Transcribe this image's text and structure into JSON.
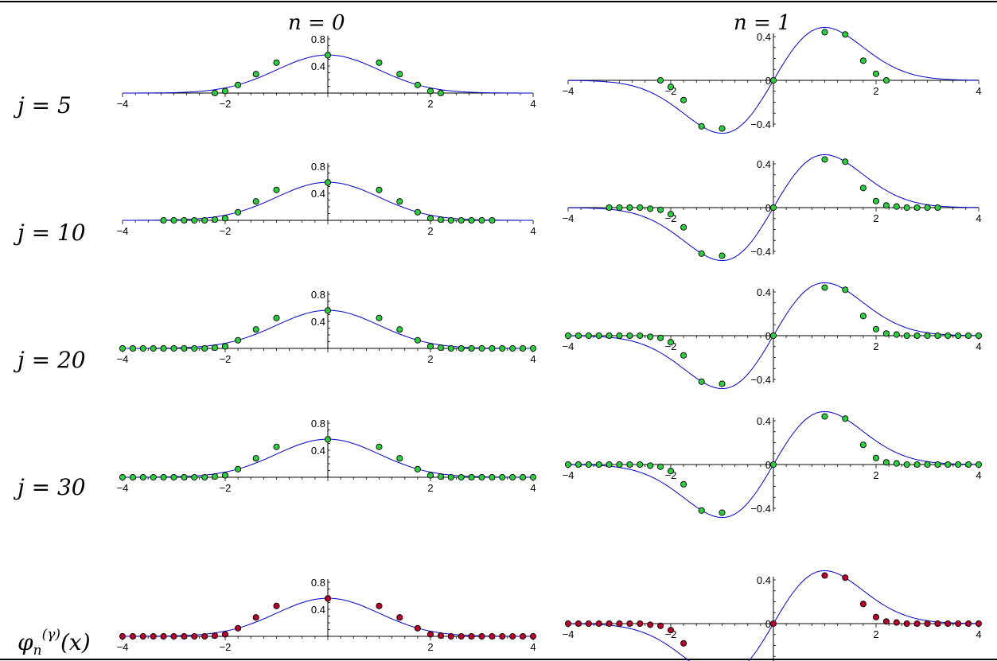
{
  "columns": {
    "left": "n = 0",
    "right": "n = 1"
  },
  "rows": [
    {
      "label": "j = 5"
    },
    {
      "label": "j = 10"
    },
    {
      "label": "j = 20"
    },
    {
      "label": "j = 30"
    },
    {
      "label_base": "φ",
      "label_sub": "n",
      "label_sup": "(γ)",
      "label_tail": "(x)"
    }
  ],
  "colors": {
    "curve": "#0000cc",
    "point_green": "#2ecc40",
    "point_red": "#b8002c",
    "axis": "#000000"
  },
  "chart_data": [
    {
      "type": "line+scatter",
      "row": "j = 5",
      "column": "n = 0",
      "xlim": [
        -4,
        4
      ],
      "ylim": [
        0,
        0.8
      ],
      "x_ticks": [
        -4,
        -2,
        2,
        4
      ],
      "y_ticks": [
        0.4,
        0.8
      ],
      "curve": "phi0",
      "point_color": "green",
      "points_x": [
        -2.2,
        -2.0,
        -1.75,
        -1.4,
        -1.0,
        0.0,
        1.0,
        1.4,
        1.75,
        2.0,
        2.2
      ],
      "points_y": [
        0.0,
        0.03,
        0.12,
        0.28,
        0.45,
        0.56,
        0.45,
        0.28,
        0.12,
        0.03,
        0.0
      ]
    },
    {
      "type": "line+scatter",
      "row": "j = 5",
      "column": "n = 1",
      "xlim": [
        -4,
        4
      ],
      "ylim": [
        -0.4,
        0.4
      ],
      "x_ticks": [
        -4,
        -2,
        2,
        4
      ],
      "y_ticks": [
        -0.4,
        0,
        0.4
      ],
      "curve": "phi1",
      "point_color": "green",
      "points_x": [
        -2.2,
        -2.0,
        -1.75,
        -1.4,
        -1.0,
        0.0,
        1.0,
        1.4,
        1.75,
        2.0,
        2.2
      ],
      "points_y": [
        0.0,
        -0.06,
        -0.18,
        -0.42,
        -0.44,
        0.0,
        0.44,
        0.42,
        0.18,
        0.06,
        0.0
      ]
    },
    {
      "type": "line+scatter",
      "row": "j = 10",
      "column": "n = 0",
      "xlim": [
        -4,
        4
      ],
      "ylim": [
        0,
        0.8
      ],
      "x_ticks": [
        -4,
        -2,
        2,
        4
      ],
      "y_ticks": [
        0.4,
        0.8
      ],
      "curve": "phi0",
      "point_color": "green",
      "points_x": [
        -3.2,
        -3.0,
        -2.8,
        -2.6,
        -2.4,
        -2.2,
        -2.0,
        -1.75,
        -1.4,
        -1.0,
        0.0,
        1.0,
        1.4,
        1.75,
        2.0,
        2.2,
        2.4,
        2.6,
        2.8,
        3.0,
        3.2
      ],
      "points_y": [
        0,
        0,
        0,
        0,
        0,
        0.01,
        0.03,
        0.12,
        0.28,
        0.45,
        0.56,
        0.45,
        0.28,
        0.12,
        0.03,
        0.01,
        0,
        0,
        0,
        0,
        0
      ]
    },
    {
      "type": "line+scatter",
      "row": "j = 10",
      "column": "n = 1",
      "xlim": [
        -4,
        4
      ],
      "ylim": [
        -0.4,
        0.4
      ],
      "x_ticks": [
        -4,
        -2,
        2,
        4
      ],
      "y_ticks": [
        -0.4,
        0,
        0.4
      ],
      "curve": "phi1",
      "point_color": "green",
      "points_x": [
        -3.2,
        -3.0,
        -2.8,
        -2.6,
        -2.4,
        -2.2,
        -2.0,
        -1.75,
        -1.4,
        -1.0,
        0.0,
        1.0,
        1.4,
        1.75,
        2.0,
        2.2,
        2.4,
        2.6,
        2.8,
        3.0,
        3.2
      ],
      "points_y": [
        0,
        0,
        0,
        0,
        -0.01,
        -0.02,
        -0.06,
        -0.18,
        -0.42,
        -0.44,
        0.0,
        0.44,
        0.42,
        0.18,
        0.06,
        0.02,
        0.01,
        0,
        0,
        0,
        0
      ]
    },
    {
      "type": "line+scatter",
      "row": "j = 20",
      "column": "n = 0",
      "xlim": [
        -4,
        4
      ],
      "ylim": [
        0,
        0.8
      ],
      "x_ticks": [
        -4,
        -2,
        2,
        4
      ],
      "y_ticks": [
        0.4,
        0.8
      ],
      "curve": "phi0",
      "point_color": "green",
      "points_x": [
        -4.0,
        -3.8,
        -3.6,
        -3.4,
        -3.2,
        -3.0,
        -2.8,
        -2.6,
        -2.4,
        -2.2,
        -2.0,
        -1.75,
        -1.4,
        -1.0,
        0.0,
        1.0,
        1.4,
        1.75,
        2.0,
        2.2,
        2.4,
        2.6,
        2.8,
        3.0,
        3.2,
        3.4,
        3.6,
        3.8,
        4.0
      ],
      "points_y": [
        0,
        0,
        0,
        0,
        0,
        0,
        0,
        0,
        0,
        0.01,
        0.03,
        0.12,
        0.28,
        0.45,
        0.56,
        0.45,
        0.28,
        0.12,
        0.03,
        0.01,
        0,
        0,
        0,
        0,
        0,
        0,
        0,
        0,
        0
      ]
    },
    {
      "type": "line+scatter",
      "row": "j = 20",
      "column": "n = 1",
      "xlim": [
        -4,
        4
      ],
      "ylim": [
        -0.4,
        0.4
      ],
      "x_ticks": [
        -4,
        -2,
        2,
        4
      ],
      "y_ticks": [
        -0.4,
        0,
        0.4
      ],
      "curve": "phi1",
      "point_color": "green",
      "points_x": [
        -4.0,
        -3.8,
        -3.6,
        -3.4,
        -3.2,
        -3.0,
        -2.8,
        -2.6,
        -2.4,
        -2.2,
        -2.0,
        -1.75,
        -1.4,
        -1.0,
        0.0,
        1.0,
        1.4,
        1.75,
        2.0,
        2.2,
        2.4,
        2.6,
        2.8,
        3.0,
        3.2,
        3.4,
        3.6,
        3.8,
        4.0
      ],
      "points_y": [
        0,
        0,
        0,
        0,
        0,
        0,
        0,
        0,
        -0.01,
        -0.02,
        -0.06,
        -0.18,
        -0.42,
        -0.44,
        0.0,
        0.44,
        0.42,
        0.18,
        0.06,
        0.02,
        0.01,
        0,
        0,
        0,
        0,
        0,
        0,
        0,
        0
      ]
    },
    {
      "type": "line+scatter",
      "row": "j = 30",
      "column": "n = 0",
      "xlim": [
        -4,
        4
      ],
      "ylim": [
        0,
        0.8
      ],
      "x_ticks": [
        -4,
        -2,
        2,
        4
      ],
      "y_ticks": [
        0.4,
        0.8
      ],
      "curve": "phi0",
      "point_color": "green",
      "points_x": [
        -4.0,
        -3.8,
        -3.6,
        -3.4,
        -3.2,
        -3.0,
        -2.8,
        -2.6,
        -2.4,
        -2.2,
        -2.0,
        -1.75,
        -1.4,
        -1.0,
        0.0,
        1.0,
        1.4,
        1.75,
        2.0,
        2.2,
        2.4,
        2.6,
        2.8,
        3.0,
        3.2,
        3.4,
        3.6,
        3.8,
        4.0
      ],
      "points_y": [
        0,
        0,
        0,
        0,
        0,
        0,
        0,
        0,
        0,
        0.01,
        0.03,
        0.12,
        0.28,
        0.45,
        0.56,
        0.45,
        0.28,
        0.12,
        0.03,
        0.01,
        0,
        0,
        0,
        0,
        0,
        0,
        0,
        0,
        0
      ]
    },
    {
      "type": "line+scatter",
      "row": "j = 30",
      "column": "n = 1",
      "xlim": [
        -4,
        4
      ],
      "ylim": [
        -0.4,
        0.4
      ],
      "x_ticks": [
        -4,
        -2,
        2,
        4
      ],
      "y_ticks": [
        -0.4,
        0,
        0.4
      ],
      "curve": "phi1",
      "point_color": "green",
      "points_x": [
        -4.0,
        -3.8,
        -3.6,
        -3.4,
        -3.2,
        -3.0,
        -2.8,
        -2.6,
        -2.4,
        -2.2,
        -2.0,
        -1.75,
        -1.4,
        -1.0,
        0.0,
        1.0,
        1.4,
        1.75,
        2.0,
        2.2,
        2.4,
        2.6,
        2.8,
        3.0,
        3.2,
        3.4,
        3.6,
        3.8,
        4.0
      ],
      "points_y": [
        0,
        0,
        0,
        0,
        0,
        0,
        0,
        0,
        -0.01,
        -0.02,
        -0.06,
        -0.18,
        -0.42,
        -0.44,
        0.0,
        0.44,
        0.42,
        0.18,
        0.06,
        0.02,
        0.01,
        0,
        0,
        0,
        0,
        0,
        0,
        0,
        0
      ]
    },
    {
      "type": "line+scatter",
      "row": "φn(γ)(x)",
      "column": "n = 0",
      "xlim": [
        -4,
        4
      ],
      "ylim": [
        0,
        0.8
      ],
      "x_ticks": [
        -4,
        -2,
        2,
        4
      ],
      "y_ticks": [
        0.4,
        0.8
      ],
      "curve": "phi0",
      "point_color": "red",
      "points_x": [
        -4.0,
        -3.8,
        -3.6,
        -3.4,
        -3.2,
        -3.0,
        -2.8,
        -2.6,
        -2.4,
        -2.2,
        -2.0,
        -1.75,
        -1.4,
        -1.0,
        0.0,
        1.0,
        1.4,
        1.75,
        2.0,
        2.2,
        2.4,
        2.6,
        2.8,
        3.0,
        3.2,
        3.4,
        3.6,
        3.8,
        4.0
      ],
      "points_y": [
        0,
        0,
        0,
        0,
        0,
        0,
        0,
        0,
        0,
        0.01,
        0.03,
        0.12,
        0.28,
        0.45,
        0.56,
        0.45,
        0.28,
        0.12,
        0.03,
        0.01,
        0,
        0,
        0,
        0,
        0,
        0,
        0,
        0,
        0
      ]
    },
    {
      "type": "line+scatter",
      "row": "φn(γ)(x)",
      "column": "n = 1",
      "xlim": [
        -4,
        4
      ],
      "ylim": [
        -0.4,
        0.4
      ],
      "x_ticks": [
        -4,
        -2,
        2,
        4
      ],
      "y_ticks": [
        -0.4,
        0,
        0.4
      ],
      "curve": "phi1",
      "point_color": "red",
      "points_x": [
        -4.0,
        -3.8,
        -3.6,
        -3.4,
        -3.2,
        -3.0,
        -2.8,
        -2.6,
        -2.4,
        -2.2,
        -2.0,
        -1.75,
        -1.4,
        -1.0,
        0.0,
        1.0,
        1.4,
        1.75,
        2.0,
        2.2,
        2.4,
        2.6,
        2.8,
        3.0,
        3.2,
        3.4,
        3.6,
        3.8,
        4.0
      ],
      "points_y": [
        0,
        0,
        0,
        0,
        0,
        0,
        0,
        0,
        -0.01,
        -0.02,
        -0.06,
        -0.18,
        -0.42,
        -0.44,
        0.0,
        0.44,
        0.42,
        0.18,
        0.06,
        0.02,
        0.01,
        0,
        0,
        0,
        0,
        0,
        0,
        0,
        0
      ]
    }
  ]
}
